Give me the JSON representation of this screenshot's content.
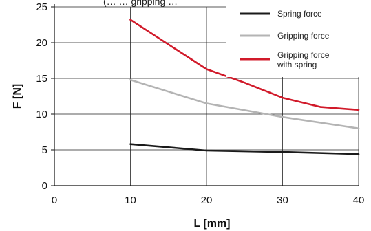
{
  "chart_data": {
    "type": "line",
    "title": "(… … gripping …",
    "xlabel": "L [mm]",
    "ylabel": "F [N]",
    "xlim": [
      0,
      40
    ],
    "ylim": [
      0,
      25
    ],
    "xticks": [
      0,
      10,
      20,
      30,
      40
    ],
    "yticks": [
      0,
      5,
      10,
      15,
      20,
      25
    ],
    "grid": true,
    "legend_position": "top-right",
    "series": [
      {
        "name": "Spring force",
        "color": "#1a1a1a",
        "x": [
          10,
          20,
          30,
          40
        ],
        "y": [
          5.8,
          4.9,
          4.7,
          4.4
        ]
      },
      {
        "name": "Gripping force",
        "color": "#b4b4b4",
        "x": [
          10,
          20,
          30,
          40
        ],
        "y": [
          14.8,
          11.5,
          9.6,
          8.0
        ]
      },
      {
        "name": "Gripping force with  spring",
        "legend_lines": [
          "Gripping force",
          "with  spring"
        ],
        "color": "#d11a2a",
        "x": [
          10,
          20,
          25,
          30,
          35,
          40
        ],
        "y": [
          23.2,
          16.3,
          14.4,
          12.3,
          11.0,
          10.6
        ]
      }
    ]
  }
}
